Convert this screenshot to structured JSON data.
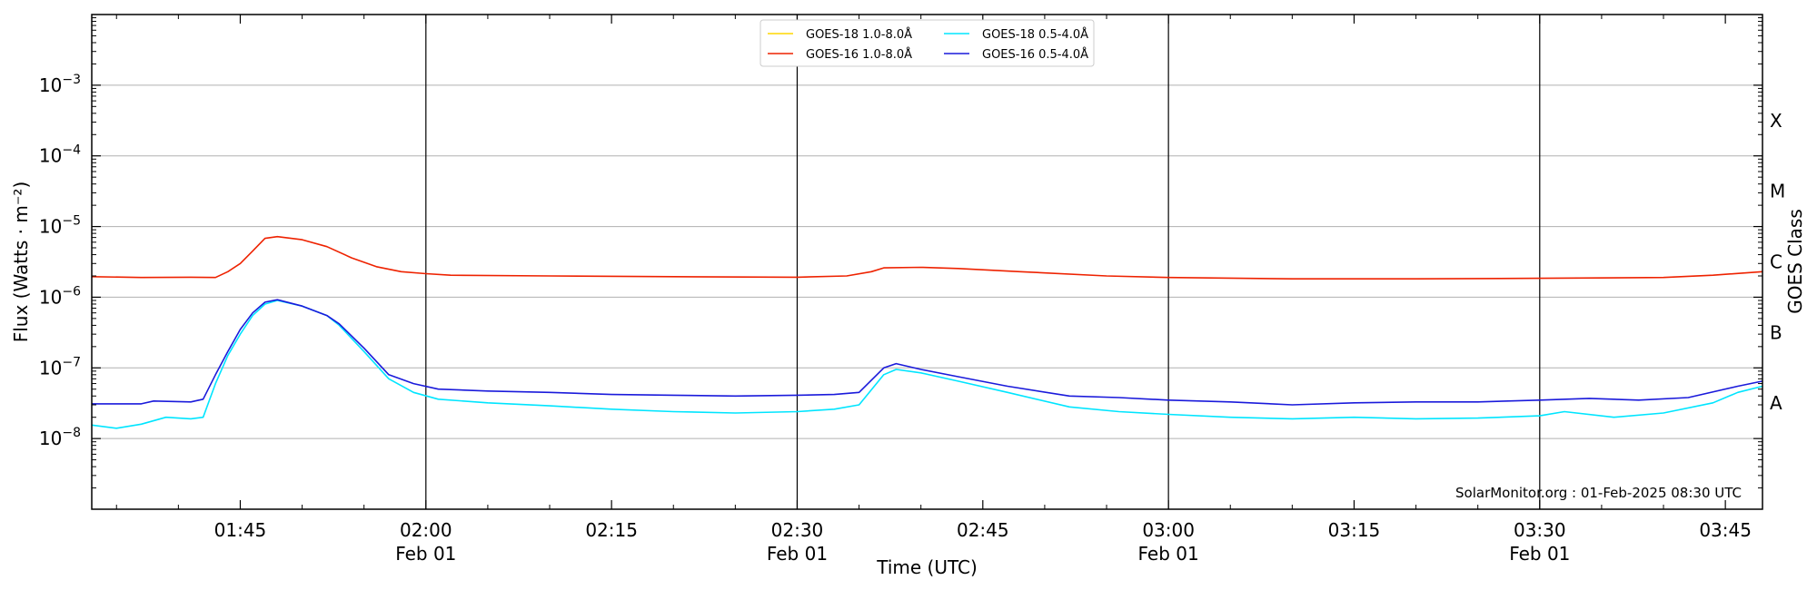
{
  "chart_data": {
    "type": "line",
    "xlabel": "Time (UTC)",
    "ylabel": "Flux (Watts · m⁻²)",
    "ylabel_right": "GOES Class",
    "y_scale": "log",
    "ylim": [
      1e-09,
      0.01
    ],
    "xlim": [
      "01:33",
      "03:48"
    ],
    "x_ticks": [
      {
        "time": "01:45",
        "label": "01:45",
        "sublabel": ""
      },
      {
        "time": "02:00",
        "label": "02:00",
        "sublabel": "Feb 01"
      },
      {
        "time": "02:15",
        "label": "02:15",
        "sublabel": ""
      },
      {
        "time": "02:30",
        "label": "02:30",
        "sublabel": "Feb 01"
      },
      {
        "time": "02:45",
        "label": "02:45",
        "sublabel": ""
      },
      {
        "time": "03:00",
        "label": "03:00",
        "sublabel": "Feb 01"
      },
      {
        "time": "03:15",
        "label": "03:15",
        "sublabel": ""
      },
      {
        "time": "03:30",
        "label": "03:30",
        "sublabel": "Feb 01"
      },
      {
        "time": "03:45",
        "label": "03:45",
        "sublabel": ""
      }
    ],
    "y_ticks": [
      {
        "exp": -8,
        "base": "10",
        "sup": "−8"
      },
      {
        "exp": -7,
        "base": "10",
        "sup": "−7"
      },
      {
        "exp": -6,
        "base": "10",
        "sup": "−6"
      },
      {
        "exp": -5,
        "base": "10",
        "sup": "−5"
      },
      {
        "exp": -4,
        "base": "10",
        "sup": "−4"
      },
      {
        "exp": -3,
        "base": "10",
        "sup": "−3"
      }
    ],
    "goes_classes": [
      {
        "label": "A",
        "exp": -8
      },
      {
        "label": "B",
        "exp": -7
      },
      {
        "label": "C",
        "exp": -6
      },
      {
        "label": "M",
        "exp": -5
      },
      {
        "label": "X",
        "exp": -4
      }
    ],
    "day_lines": [
      "02:00",
      "02:30",
      "03:00",
      "03:30"
    ],
    "grid": "horizontal",
    "legend_position": "top-center",
    "annotation": "SolarMonitor.org : 01-Feb-2025 08:30 UTC",
    "series": [
      {
        "name": "GOES-18 1.0-8.0Å",
        "color": "#ffd700",
        "points": []
      },
      {
        "name": "GOES-16 1.0-8.0Å",
        "color": "#ee2200",
        "points": [
          [
            "01:33",
            1.95e-06
          ],
          [
            "01:37",
            1.9e-06
          ],
          [
            "01:41",
            1.92e-06
          ],
          [
            "01:43",
            1.9e-06
          ],
          [
            "01:44",
            2.3e-06
          ],
          [
            "01:45",
            3e-06
          ],
          [
            "01:46",
            4.5e-06
          ],
          [
            "01:47",
            6.8e-06
          ],
          [
            "01:48",
            7.2e-06
          ],
          [
            "01:50",
            6.5e-06
          ],
          [
            "01:52",
            5.2e-06
          ],
          [
            "01:54",
            3.6e-06
          ],
          [
            "01:56",
            2.7e-06
          ],
          [
            "01:58",
            2.3e-06
          ],
          [
            "02:00",
            2.15e-06
          ],
          [
            "02:02",
            2.05e-06
          ],
          [
            "02:10",
            2e-06
          ],
          [
            "02:20",
            1.95e-06
          ],
          [
            "02:30",
            1.92e-06
          ],
          [
            "02:34",
            2e-06
          ],
          [
            "02:36",
            2.3e-06
          ],
          [
            "02:37",
            2.6e-06
          ],
          [
            "02:40",
            2.65e-06
          ],
          [
            "02:43",
            2.55e-06
          ],
          [
            "02:48",
            2.3e-06
          ],
          [
            "02:55",
            2e-06
          ],
          [
            "03:00",
            1.9e-06
          ],
          [
            "03:10",
            1.82e-06
          ],
          [
            "03:20",
            1.82e-06
          ],
          [
            "03:30",
            1.85e-06
          ],
          [
            "03:40",
            1.9e-06
          ],
          [
            "03:44",
            2.05e-06
          ],
          [
            "03:48",
            2.3e-06
          ]
        ]
      },
      {
        "name": "GOES-18 0.5-4.0Å",
        "color": "#00e5ff",
        "points": [
          [
            "01:33",
            1.55e-08
          ],
          [
            "01:35",
            1.4e-08
          ],
          [
            "01:37",
            1.6e-08
          ],
          [
            "01:39",
            2e-08
          ],
          [
            "01:41",
            1.9e-08
          ],
          [
            "01:42",
            2e-08
          ],
          [
            "01:43",
            6e-08
          ],
          [
            "01:44",
            1.5e-07
          ],
          [
            "01:45",
            3e-07
          ],
          [
            "01:46",
            5.5e-07
          ],
          [
            "01:47",
            8e-07
          ],
          [
            "01:48",
            9e-07
          ],
          [
            "01:50",
            7.5e-07
          ],
          [
            "01:52",
            5.5e-07
          ],
          [
            "01:53",
            4e-07
          ],
          [
            "01:55",
            1.7e-07
          ],
          [
            "01:57",
            7e-08
          ],
          [
            "01:59",
            4.5e-08
          ],
          [
            "02:01",
            3.6e-08
          ],
          [
            "02:05",
            3.2e-08
          ],
          [
            "02:10",
            2.9e-08
          ],
          [
            "02:15",
            2.6e-08
          ],
          [
            "02:20",
            2.4e-08
          ],
          [
            "02:25",
            2.3e-08
          ],
          [
            "02:30",
            2.4e-08
          ],
          [
            "02:33",
            2.6e-08
          ],
          [
            "02:35",
            3e-08
          ],
          [
            "02:37",
            8e-08
          ],
          [
            "02:38",
            9.5e-08
          ],
          [
            "02:40",
            8.5e-08
          ],
          [
            "02:43",
            6.5e-08
          ],
          [
            "02:47",
            4.5e-08
          ],
          [
            "02:52",
            2.8e-08
          ],
          [
            "02:56",
            2.4e-08
          ],
          [
            "03:00",
            2.2e-08
          ],
          [
            "03:05",
            2e-08
          ],
          [
            "03:10",
            1.9e-08
          ],
          [
            "03:15",
            2e-08
          ],
          [
            "03:20",
            1.9e-08
          ],
          [
            "03:25",
            1.95e-08
          ],
          [
            "03:30",
            2.1e-08
          ],
          [
            "03:32",
            2.4e-08
          ],
          [
            "03:36",
            2e-08
          ],
          [
            "03:40",
            2.3e-08
          ],
          [
            "03:44",
            3.2e-08
          ],
          [
            "03:46",
            4.5e-08
          ],
          [
            "03:48",
            5.5e-08
          ]
        ]
      },
      {
        "name": "GOES-16 0.5-4.0Å",
        "color": "#1a1adb",
        "points": [
          [
            "01:33",
            3.1e-08
          ],
          [
            "01:37",
            3.1e-08
          ],
          [
            "01:38",
            3.4e-08
          ],
          [
            "01:41",
            3.3e-08
          ],
          [
            "01:42",
            3.6e-08
          ],
          [
            "01:43",
            8e-08
          ],
          [
            "01:44",
            1.7e-07
          ],
          [
            "01:45",
            3.5e-07
          ],
          [
            "01:46",
            6e-07
          ],
          [
            "01:47",
            8.5e-07
          ],
          [
            "01:48",
            9.2e-07
          ],
          [
            "01:50",
            7.5e-07
          ],
          [
            "01:52",
            5.5e-07
          ],
          [
            "01:53",
            4.2e-07
          ],
          [
            "01:55",
            1.9e-07
          ],
          [
            "01:57",
            8e-08
          ],
          [
            "01:59",
            6e-08
          ],
          [
            "02:01",
            5e-08
          ],
          [
            "02:05",
            4.7e-08
          ],
          [
            "02:10",
            4.5e-08
          ],
          [
            "02:15",
            4.2e-08
          ],
          [
            "02:20",
            4.1e-08
          ],
          [
            "02:25",
            4e-08
          ],
          [
            "02:30",
            4.1e-08
          ],
          [
            "02:33",
            4.2e-08
          ],
          [
            "02:35",
            4.5e-08
          ],
          [
            "02:37",
            1e-07
          ],
          [
            "02:38",
            1.15e-07
          ],
          [
            "02:40",
            9.5e-08
          ],
          [
            "02:43",
            7.5e-08
          ],
          [
            "02:47",
            5.5e-08
          ],
          [
            "02:52",
            4e-08
          ],
          [
            "02:56",
            3.8e-08
          ],
          [
            "03:00",
            3.5e-08
          ],
          [
            "03:05",
            3.3e-08
          ],
          [
            "03:10",
            3e-08
          ],
          [
            "03:15",
            3.2e-08
          ],
          [
            "03:20",
            3.3e-08
          ],
          [
            "03:25",
            3.3e-08
          ],
          [
            "03:30",
            3.5e-08
          ],
          [
            "03:34",
            3.7e-08
          ],
          [
            "03:38",
            3.5e-08
          ],
          [
            "03:42",
            3.8e-08
          ],
          [
            "03:46",
            5.5e-08
          ],
          [
            "03:48",
            6.5e-08
          ]
        ]
      }
    ]
  }
}
